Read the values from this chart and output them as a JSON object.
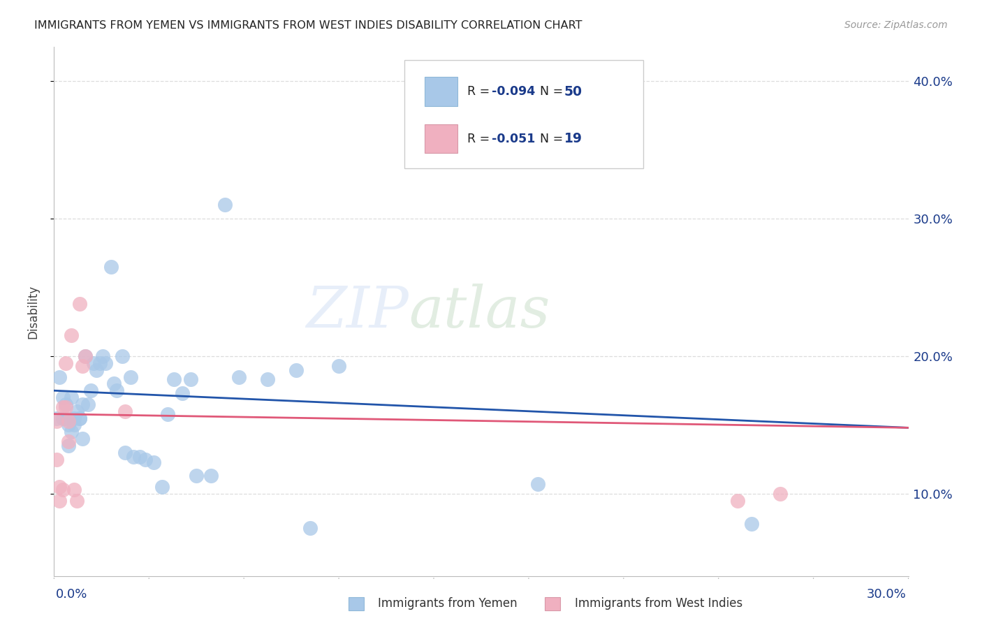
{
  "title": "IMMIGRANTS FROM YEMEN VS IMMIGRANTS FROM WEST INDIES DISABILITY CORRELATION CHART",
  "source": "Source: ZipAtlas.com",
  "ylabel": "Disability",
  "xlim": [
    0.0,
    0.3
  ],
  "ylim": [
    0.04,
    0.425
  ],
  "yticks": [
    0.1,
    0.2,
    0.3,
    0.4
  ],
  "ytick_labels": [
    "10.0%",
    "20.0%",
    "30.0%",
    "40.0%"
  ],
  "watermark_left": "ZIP",
  "watermark_right": "atlas",
  "legend_r1": "R = ",
  "legend_rv1": "-0.094",
  "legend_n1": "N = ",
  "legend_nv1": "50",
  "legend_r2": "R = ",
  "legend_rv2": "-0.051",
  "legend_n2": "N = ",
  "legend_nv2": "19",
  "blue_scatter_color": "#a8c8e8",
  "pink_scatter_color": "#f0b0c0",
  "blue_line_color": "#2255aa",
  "pink_line_color": "#e05878",
  "text_blue_color": "#1a3a8a",
  "grid_color": "#dddddd",
  "background_color": "#ffffff",
  "yemen_x": [
    0.001,
    0.002,
    0.003,
    0.003,
    0.004,
    0.004,
    0.005,
    0.005,
    0.006,
    0.006,
    0.007,
    0.007,
    0.008,
    0.009,
    0.009,
    0.01,
    0.01,
    0.011,
    0.012,
    0.013,
    0.014,
    0.015,
    0.016,
    0.017,
    0.018,
    0.02,
    0.021,
    0.022,
    0.024,
    0.025,
    0.027,
    0.028,
    0.03,
    0.032,
    0.035,
    0.038,
    0.04,
    0.042,
    0.045,
    0.048,
    0.05,
    0.055,
    0.06,
    0.065,
    0.075,
    0.085,
    0.09,
    0.1,
    0.17,
    0.245
  ],
  "yemen_y": [
    0.155,
    0.185,
    0.17,
    0.155,
    0.165,
    0.155,
    0.15,
    0.135,
    0.17,
    0.145,
    0.155,
    0.15,
    0.16,
    0.155,
    0.155,
    0.165,
    0.14,
    0.2,
    0.165,
    0.175,
    0.195,
    0.19,
    0.195,
    0.2,
    0.195,
    0.265,
    0.18,
    0.175,
    0.2,
    0.13,
    0.185,
    0.127,
    0.127,
    0.125,
    0.123,
    0.105,
    0.158,
    0.183,
    0.173,
    0.183,
    0.113,
    0.113,
    0.31,
    0.185,
    0.183,
    0.19,
    0.075,
    0.193,
    0.107,
    0.078
  ],
  "west_x": [
    0.001,
    0.001,
    0.002,
    0.002,
    0.003,
    0.003,
    0.004,
    0.004,
    0.005,
    0.005,
    0.006,
    0.007,
    0.008,
    0.009,
    0.01,
    0.011,
    0.025,
    0.24,
    0.255
  ],
  "west_y": [
    0.153,
    0.125,
    0.105,
    0.095,
    0.163,
    0.103,
    0.163,
    0.195,
    0.138,
    0.153,
    0.215,
    0.103,
    0.095,
    0.238,
    0.193,
    0.2,
    0.16,
    0.095,
    0.1
  ],
  "blue_trend_x0": 0.0,
  "blue_trend_y0": 0.175,
  "blue_trend_x1": 0.3,
  "blue_trend_y1": 0.148,
  "pink_trend_x0": 0.0,
  "pink_trend_y0": 0.158,
  "pink_trend_x1": 0.3,
  "pink_trend_y1": 0.148
}
